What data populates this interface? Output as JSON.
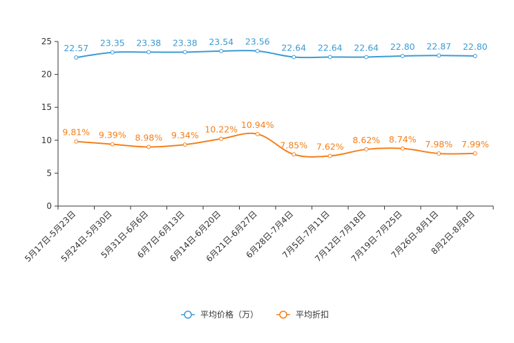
{
  "chart_data": {
    "type": "line",
    "categories": [
      "5月17日-5月23日",
      "5月24日-5月30日",
      "5月31日-6月6日",
      "6月7日-6月13日",
      "6月14日-6月20日",
      "6月21日-6月27日",
      "6月28日-7月4日",
      "7月5日-7月11日",
      "7月12日-7月18日",
      "7月19日-7月25日",
      "7月26日-8月1日",
      "8月2日-8月8日"
    ],
    "series": [
      {
        "name": "平均价格（万）",
        "values": [
          22.57,
          23.35,
          23.38,
          23.38,
          23.54,
          23.56,
          22.64,
          22.64,
          22.64,
          22.8,
          22.87,
          22.8
        ],
        "labels": [
          "22.57",
          "23.35",
          "23.38",
          "23.38",
          "23.54",
          "23.56",
          "22.64",
          "22.64",
          "22.64",
          "22.80",
          "22.87",
          "22.80"
        ],
        "color": "#3a9bd5"
      },
      {
        "name": "平均折扣",
        "values": [
          9.81,
          9.39,
          8.98,
          9.34,
          10.22,
          10.94,
          7.85,
          7.62,
          8.62,
          8.74,
          7.98,
          7.99
        ],
        "labels": [
          "9.81%",
          "9.39%",
          "8.98%",
          "9.34%",
          "10.22%",
          "10.94%",
          "7.85%",
          "7.62%",
          "8.62%",
          "8.74%",
          "7.98%",
          "7.99%"
        ],
        "color": "#f57f17"
      }
    ],
    "ylim": [
      0,
      25
    ],
    "yticks": [
      "0",
      "5",
      "10",
      "15",
      "20",
      "25"
    ],
    "legend_position": "bottom-center",
    "grid": false,
    "xlabel": "",
    "ylabel": "",
    "title": ""
  }
}
